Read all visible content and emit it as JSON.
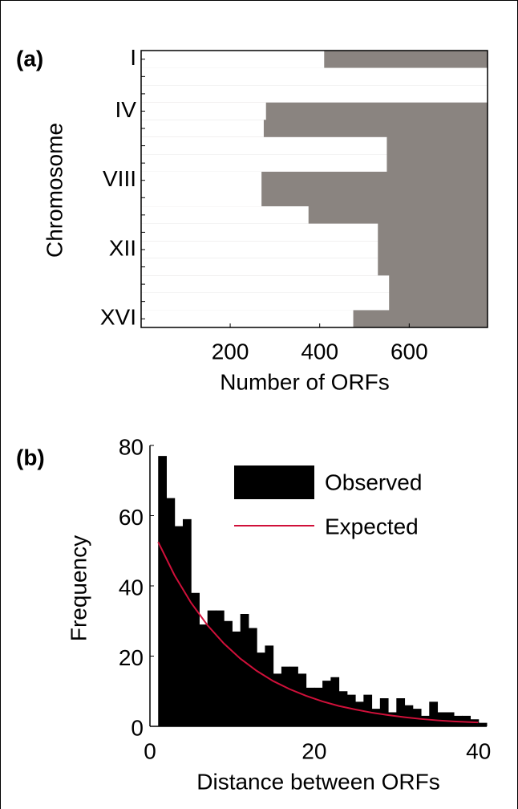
{
  "chart_data": [
    {
      "type": "heatmap",
      "panel_label": "(a)",
      "x_label": "Number of ORFs",
      "y_label": "Chromosome",
      "categories": [
        "I",
        null,
        null,
        "IV",
        null,
        null,
        null,
        "VIII",
        null,
        null,
        null,
        "XII",
        null,
        null,
        null,
        "XVI"
      ],
      "values": [
        410,
        775,
        775,
        280,
        275,
        550,
        550,
        270,
        270,
        375,
        530,
        530,
        530,
        555,
        555,
        475
      ],
      "color": "#ffffff",
      "background": "#8a8480",
      "xlim": [
        1,
        775
      ],
      "xticks": [
        200,
        400,
        600
      ]
    },
    {
      "type": "histogram",
      "panel_label": "(b)",
      "x_label": "Distance between ORFs",
      "y_label": "Frequency",
      "bins": [
        1,
        2,
        3,
        4,
        5,
        6,
        7,
        8,
        9,
        10,
        11,
        12,
        13,
        14,
        15,
        16,
        17,
        18,
        19,
        20,
        21,
        22,
        23,
        24,
        25,
        26,
        27,
        28,
        29,
        30,
        31,
        32,
        33,
        34,
        35,
        36,
        37,
        38,
        39,
        40,
        41
      ],
      "series": [
        {
          "name": "Observed",
          "color": "#000000",
          "values": [
            77,
            65,
            57,
            59,
            38,
            29,
            33,
            33,
            30,
            27,
            32,
            28,
            21,
            23,
            15,
            17,
            17,
            15,
            11,
            11,
            13,
            14,
            10,
            9,
            7,
            9,
            5,
            8,
            4,
            8,
            6,
            5,
            3,
            7,
            4,
            4,
            3,
            3,
            2,
            1
          ]
        },
        {
          "name": "Expected",
          "color": "#d0103a",
          "x": [
            1,
            3,
            5,
            7,
            9,
            11,
            13,
            15,
            17,
            19,
            21,
            23,
            25,
            27,
            29,
            31,
            33,
            35,
            37,
            39,
            40
          ],
          "values": [
            52.5,
            43.0,
            35.2,
            28.8,
            23.6,
            19.3,
            15.8,
            12.9,
            10.6,
            8.7,
            7.1,
            5.8,
            4.8,
            3.9,
            3.2,
            2.6,
            2.1,
            1.7,
            1.4,
            1.2,
            1.1
          ]
        }
      ],
      "xlim": [
        0,
        41
      ],
      "xticks": [
        0,
        20,
        40
      ],
      "ylim": [
        0,
        80
      ],
      "yticks": [
        0,
        20,
        40,
        60,
        80
      ]
    }
  ]
}
